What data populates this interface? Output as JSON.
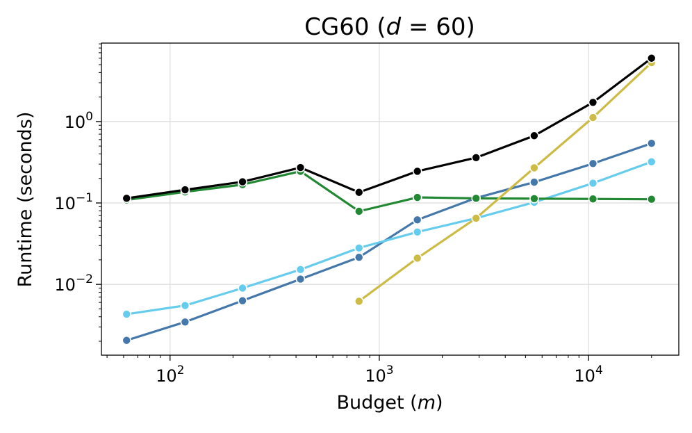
{
  "chart_data": {
    "type": "line",
    "title": {
      "pre": "CG60 (",
      "italic": "d",
      "post": " = 60)"
    },
    "xlabel": {
      "pre": "Budget (",
      "italic": "m",
      "post": ")"
    },
    "ylabel": "Runtime (seconds)",
    "xscale": "log",
    "yscale": "log",
    "xlim": [
      47,
      27000
    ],
    "ylim": [
      0.00135,
      9.2
    ],
    "grid": true,
    "x_ticks": [
      {
        "base": "10",
        "exp": "2",
        "value": 100
      },
      {
        "base": "10",
        "exp": "3",
        "value": 1000
      },
      {
        "base": "10",
        "exp": "4",
        "value": 10000
      }
    ],
    "y_ticks": [
      {
        "base": "10",
        "exp": "−2",
        "value": 0.01
      },
      {
        "base": "10",
        "exp": "−1",
        "value": 0.1
      },
      {
        "base": "10",
        "exp": "0",
        "value": 1
      }
    ],
    "series": [
      {
        "color": "#4477aa",
        "x": [
          62,
          118,
          222,
          420,
          800,
          1520,
          2900,
          5500,
          10500,
          20000
        ],
        "y": [
          0.00205,
          0.00345,
          0.0063,
          0.0116,
          0.0215,
          0.062,
          0.115,
          0.18,
          0.305,
          0.54
        ]
      },
      {
        "color": "#66ccee",
        "x": [
          62,
          118,
          222,
          420,
          800,
          1520,
          2900,
          5500,
          10500,
          20000
        ],
        "y": [
          0.0043,
          0.0055,
          0.009,
          0.0152,
          0.028,
          0.044,
          0.065,
          0.102,
          0.175,
          0.32
        ]
      },
      {
        "color": "#228833",
        "x": [
          62,
          118,
          222,
          420,
          800,
          1520,
          2900,
          5500,
          10500,
          20000
        ],
        "y": [
          0.109,
          0.137,
          0.168,
          0.245,
          0.079,
          0.117,
          0.114,
          0.113,
          0.112,
          0.111
        ]
      },
      {
        "color": "#ccbb44",
        "x": [
          800,
          1520,
          2900,
          5500,
          10500,
          20000
        ],
        "y": [
          0.0062,
          0.021,
          0.065,
          0.27,
          1.12,
          5.3
        ]
      },
      {
        "color": "#000000",
        "x": [
          62,
          118,
          222,
          420,
          800,
          1520,
          2900,
          5500,
          10500,
          20000
        ],
        "y": [
          0.114,
          0.145,
          0.182,
          0.272,
          0.135,
          0.245,
          0.36,
          0.67,
          1.72,
          6.0
        ]
      }
    ]
  }
}
